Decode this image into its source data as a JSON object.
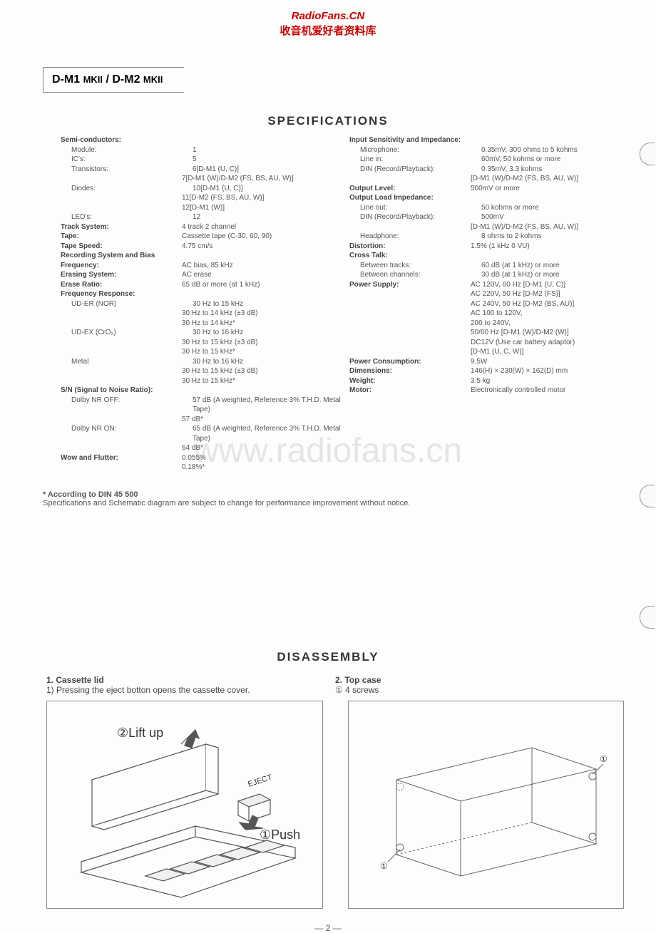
{
  "header": {
    "link1": "RadioFans.CN",
    "link2": "收音机爱好者资料库"
  },
  "model": {
    "m1": "D-M1",
    "mk1": "MKII",
    "sep": " / ",
    "m2": "D-M2",
    "mk2": "MKII"
  },
  "sections": {
    "specifications": "SPECIFICATIONS",
    "disassembly": "DISASSEMBLY"
  },
  "specLeft": [
    {
      "label": "Semi-conductors:",
      "value": "",
      "bold": true
    },
    {
      "label": "Module:",
      "value": "1",
      "indent": 1
    },
    {
      "label": "IC's:",
      "value": "5",
      "indent": 1
    },
    {
      "label": "Transistors:",
      "value": "6[D-M1 (U, C)]",
      "indent": 1
    },
    {
      "label": "",
      "value": "7[D-M1 (W)/D-M2 (FS, BS, AU, W)]"
    },
    {
      "label": "Diodes:",
      "value": "10[D-M1 (U, C)]",
      "indent": 1
    },
    {
      "label": "",
      "value": "11[D-M2 (FS, BS, AU, W)]"
    },
    {
      "label": "",
      "value": "12[D-M1 (W)]"
    },
    {
      "label": "LED's:",
      "value": "12",
      "indent": 1
    },
    {
      "label": "Track System:",
      "value": "4 track 2 channel",
      "bold": true
    },
    {
      "label": "Tape:",
      "value": "Cassette tape (C-30, 60, 90)",
      "bold": true
    },
    {
      "label": "Tape Speed:",
      "value": "4.75 cm/s",
      "bold": true
    },
    {
      "label": "Recording System and Bias",
      "value": "",
      "bold": true
    },
    {
      "label": "Frequency:",
      "value": "AC bias, 85 kHz",
      "bold": true
    },
    {
      "label": "Erasing System:",
      "value": "AC erase",
      "bold": true
    },
    {
      "label": "Erase Ratio:",
      "value": "65 dB or more (at 1 kHz)",
      "bold": true
    },
    {
      "label": "Frequency Response:",
      "value": "",
      "bold": true
    },
    {
      "label": "UD-ER (NOR)",
      "value": "30 Hz to 15 kHz",
      "indent": 1
    },
    {
      "label": "",
      "value": "30 Hz to 14 kHz (±3 dB)"
    },
    {
      "label": "",
      "value": "30 Hz to 14 kHz*"
    },
    {
      "label": "UD-EX (CrO₂)",
      "value": "30 Hz to 16 kHz",
      "indent": 1
    },
    {
      "label": "",
      "value": "30 Hz to 15 kHz (±3 dB)"
    },
    {
      "label": "",
      "value": "30 Hz to 15 kHz*"
    },
    {
      "label": "Metal",
      "value": "30 Hz to 16 kHz",
      "indent": 1
    },
    {
      "label": "",
      "value": "30 Hz to 15 kHz (±3 dB)"
    },
    {
      "label": "",
      "value": "30 Hz to 15 kHz*"
    },
    {
      "label": "S/N (Signal to Noise Ratio):",
      "value": "",
      "bold": true
    },
    {
      "label": "Dolby NR OFF:",
      "value": "57 dB (A weighted, Reference 3% T.H.D. Metal Tape)",
      "indent": 1
    },
    {
      "label": "",
      "value": "57 dB*"
    },
    {
      "label": "Dolby NR ON:",
      "value": "65 dB (A weighted, Reference 3% T.H.D. Metal Tape)",
      "indent": 1
    },
    {
      "label": "",
      "value": "64 dB*"
    },
    {
      "label": "Wow and Flutter:",
      "value": "0.055%",
      "bold": true
    },
    {
      "label": "",
      "value": "0.18%*"
    }
  ],
  "specRight": [
    {
      "label": "Input Sensitivity and Impedance:",
      "value": "",
      "bold": true
    },
    {
      "label": "Microphone:",
      "value": "0.35mV, 300 ohms to 5 kohms",
      "indent": 1
    },
    {
      "label": "Line in:",
      "value": "60mV, 50 kohms or more",
      "indent": 1
    },
    {
      "label": "DIN (Record/Playback):",
      "value": "0.35mV, 3.3 kohms",
      "indent": 1
    },
    {
      "label": "",
      "value": "[D-M1 (W)/D-M2 (FS, BS, AU, W)]"
    },
    {
      "label": "Output Level:",
      "value": "500mV or more",
      "bold": true
    },
    {
      "label": "Output Load Impedance:",
      "value": "",
      "bold": true
    },
    {
      "label": "Line out:",
      "value": "50 kohms or more",
      "indent": 1
    },
    {
      "label": "DIN (Record/Playback):",
      "value": "500mV",
      "indent": 1
    },
    {
      "label": "",
      "value": "[D-M1 (W)/D-M2 (FS, BS, AU, W)]"
    },
    {
      "label": "Headphone:",
      "value": "8 ohms to 2 kohms",
      "indent": 1
    },
    {
      "label": "Distortion:",
      "value": "1.5% (1 kHz 0 VU)",
      "bold": true
    },
    {
      "label": "Cross Talk:",
      "value": "",
      "bold": true
    },
    {
      "label": "Between tracks:",
      "value": "60 dB (at 1 kHz) or more",
      "indent": 1
    },
    {
      "label": "Between channels:",
      "value": "30 dB (at 1 kHz) or more",
      "indent": 1
    },
    {
      "label": "Power Supply:",
      "value": "AC 120V, 60 Hz [D-M1 (U, C)]",
      "bold": true
    },
    {
      "label": "",
      "value": "AC 220V, 50 Hz [D-M2 (FS)]"
    },
    {
      "label": "",
      "value": "AC 240V, 50 Hz [D-M2 (BS, AU)]"
    },
    {
      "label": "",
      "value": "AC 100 to 120V,"
    },
    {
      "label": "",
      "value": "     200 to 240V,"
    },
    {
      "label": "",
      "value": "     50/60 Hz [D-M1 (W)/D-M2 (W)]"
    },
    {
      "label": "",
      "value": "DC12V (Use car battery adaptor)"
    },
    {
      "label": "",
      "value": "     [D-M1 (U, C, W)]"
    },
    {
      "label": "Power Consumption:",
      "value": "9.5W",
      "bold": true
    },
    {
      "label": "Dimensions:",
      "value": "146(H) × 230(W) × 162(D) mm",
      "bold": true
    },
    {
      "label": "Weight:",
      "value": "3.5 kg",
      "bold": true
    },
    {
      "label": "Motor:",
      "value": "Electronically controlled motor",
      "bold": true
    }
  ],
  "footnote": {
    "head": "*  According to DIN 45 500",
    "body": "Specifications and Schematic diagram are subject to change for performance improvement without notice."
  },
  "watermark": "www.radiofans.cn",
  "disassembly": {
    "col1": {
      "h": "1.  Cassette lid",
      "t": "1) Pressing the eject botton opens the cassette cover."
    },
    "col2": {
      "h": "2.  Top case",
      "t": "①  4 screws"
    }
  },
  "diagram1": {
    "liftup": "②Lift up",
    "push": "①Push",
    "eject": "EJECT"
  },
  "pageNum": "— 2 —"
}
